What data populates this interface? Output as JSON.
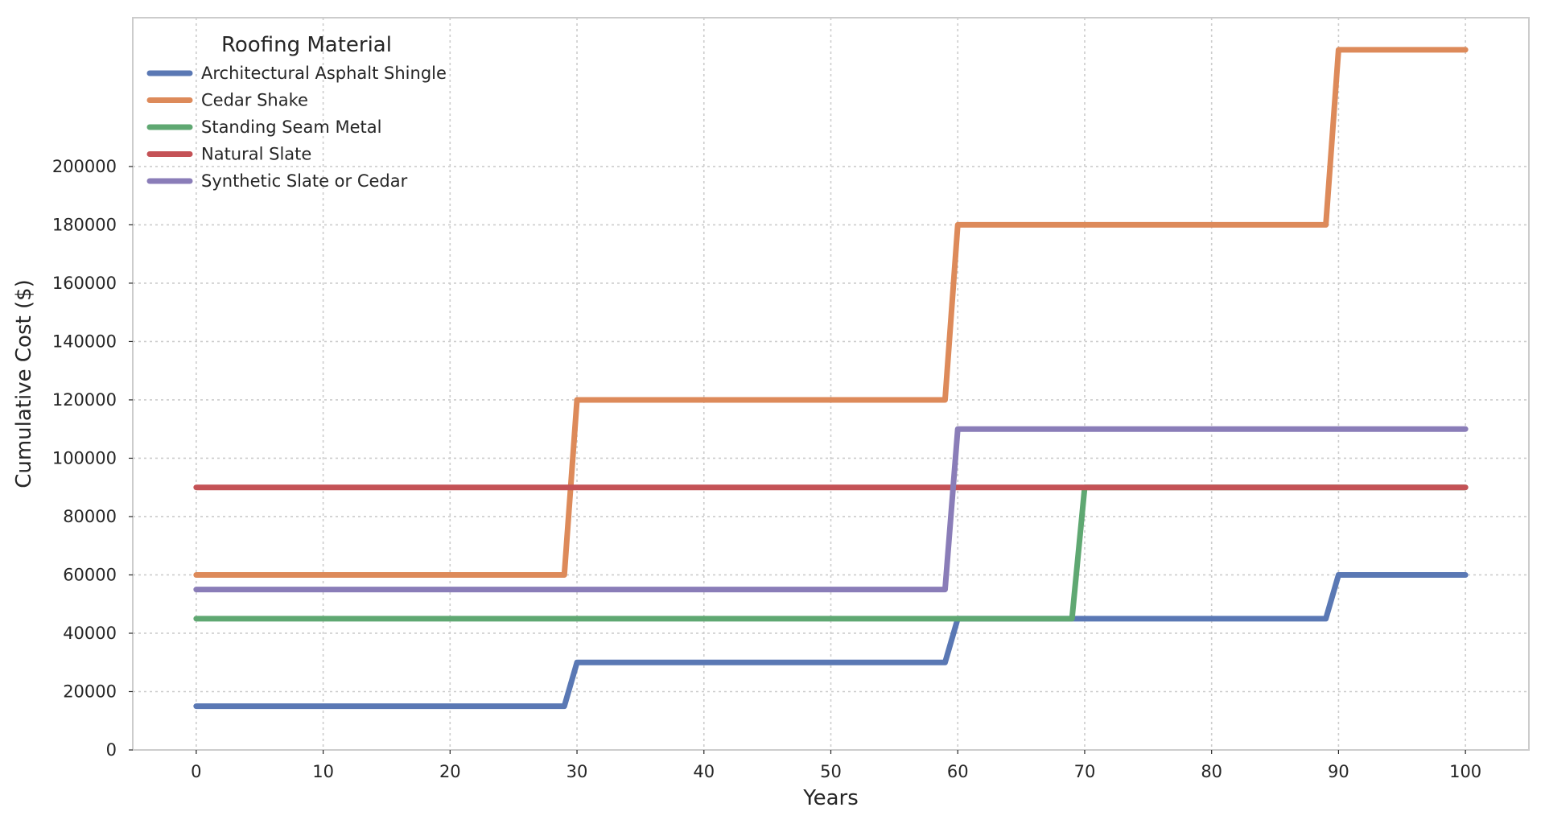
{
  "chart_data": {
    "type": "line",
    "title": "",
    "xlabel": "Years",
    "ylabel": "Cumulative Cost ($)",
    "xlim": [
      -5,
      105
    ],
    "ylim": [
      0,
      251000
    ],
    "xticks": [
      0,
      10,
      20,
      30,
      40,
      50,
      60,
      70,
      80,
      90,
      100
    ],
    "yticks": [
      0,
      20000,
      40000,
      60000,
      80000,
      100000,
      120000,
      140000,
      160000,
      180000,
      200000
    ],
    "grid": true,
    "legend": {
      "title": "Roofing Material",
      "placement": "top-left"
    },
    "series": [
      {
        "name": "Architectural Asphalt Shingle",
        "color": "#5a78b4",
        "x": [
          0,
          29,
          30,
          59,
          60,
          89,
          90,
          100
        ],
        "values": [
          15000,
          15000,
          30000,
          30000,
          45000,
          45000,
          60000,
          60000
        ]
      },
      {
        "name": "Cedar Shake",
        "color": "#dd8a5a",
        "x": [
          0,
          29,
          30,
          59,
          60,
          89,
          90,
          100
        ],
        "values": [
          60000,
          60000,
          120000,
          120000,
          180000,
          180000,
          240000,
          240000
        ]
      },
      {
        "name": "Standing Seam Metal",
        "color": "#5fa872",
        "x": [
          0,
          69,
          70,
          100
        ],
        "values": [
          45000,
          45000,
          90000,
          90000
        ]
      },
      {
        "name": "Natural Slate",
        "color": "#c45256",
        "x": [
          0,
          100
        ],
        "values": [
          90000,
          90000
        ]
      },
      {
        "name": "Synthetic Slate or Cedar",
        "color": "#8a7db8",
        "x": [
          0,
          59,
          60,
          100
        ],
        "values": [
          55000,
          55000,
          110000,
          110000
        ]
      }
    ]
  }
}
